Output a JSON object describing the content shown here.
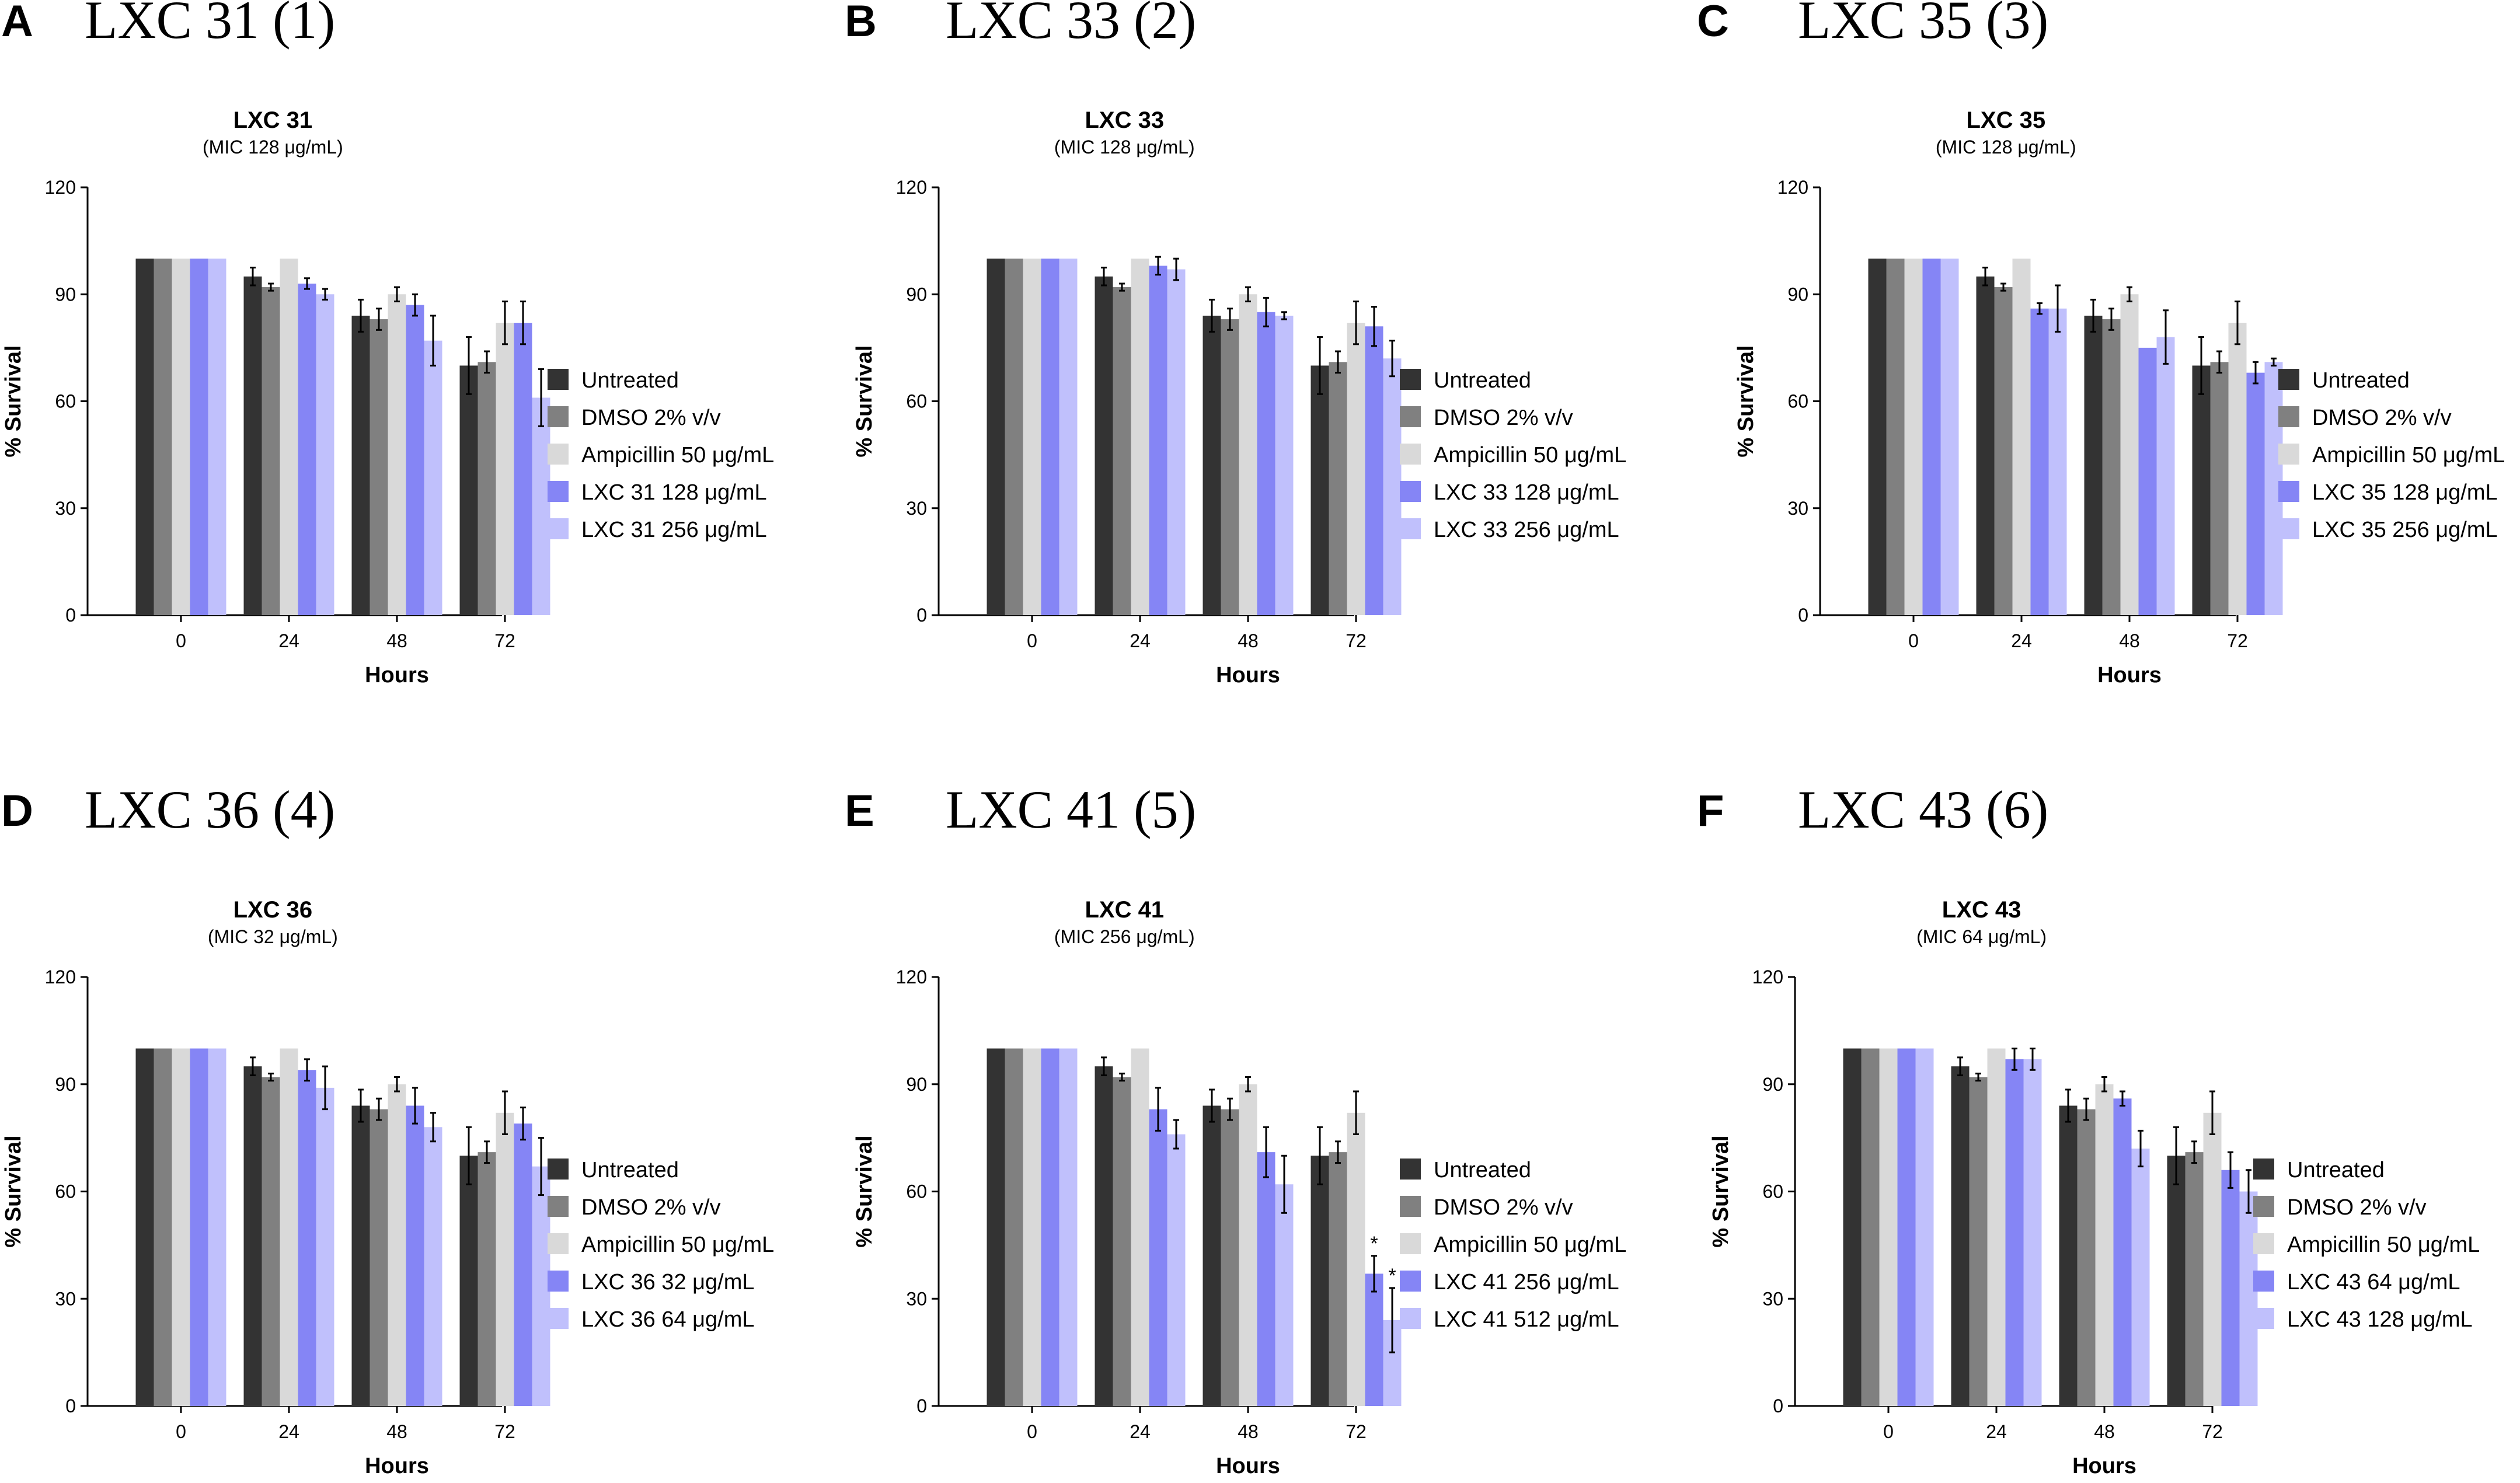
{
  "colors": {
    "Untreated": "#333333",
    "DMSO": "#808080",
    "Ampicillin": "#d9d9d9",
    "low": "#8585f5",
    "high": "#c0c0fc"
  },
  "chart_data": [
    {
      "type": "bar",
      "panel_letter": "A",
      "heading": "LXC 31 (1)",
      "title": "LXC 31",
      "subtitle": "(MIC 128 μg/mL)",
      "xlabel": "Hours",
      "ylabel": "% Survival",
      "ylim": [
        0,
        120
      ],
      "yticks": [
        "0",
        "30",
        "60",
        "90",
        "120"
      ],
      "categories": [
        "0",
        "24",
        "48",
        "72"
      ],
      "legend_position": "right",
      "series": [
        {
          "name": "Untreated",
          "color_key": "Untreated",
          "values": [
            100,
            95,
            84,
            70
          ],
          "errors": [
            0,
            2.5,
            4.5,
            8
          ]
        },
        {
          "name": "DMSO 2% v/v",
          "color_key": "DMSO",
          "values": [
            100,
            92,
            83,
            71
          ],
          "errors": [
            0,
            1,
            3,
            3
          ]
        },
        {
          "name": "Ampicillin 50 μg/mL",
          "color_key": "Ampicillin",
          "values": [
            100,
            100,
            90,
            82
          ],
          "errors": [
            0,
            0,
            2,
            6
          ]
        },
        {
          "name": "LXC 31 128 μg/mL",
          "color_key": "low",
          "values": [
            100,
            93,
            87,
            82
          ],
          "errors": [
            0,
            1.5,
            3,
            6
          ]
        },
        {
          "name": "LXC 31 256 μg/mL",
          "color_key": "high",
          "values": [
            100,
            90,
            77,
            61
          ],
          "errors": [
            0,
            1.5,
            7,
            8
          ]
        }
      ],
      "annotations": []
    },
    {
      "type": "bar",
      "panel_letter": "B",
      "heading": "LXC 33 (2)",
      "title": "LXC 33",
      "subtitle": "(MIC 128 μg/mL)",
      "xlabel": "Hours",
      "ylabel": "% Survival",
      "ylim": [
        0,
        120
      ],
      "yticks": [
        "0",
        "30",
        "60",
        "90",
        "120"
      ],
      "categories": [
        "0",
        "24",
        "48",
        "72"
      ],
      "legend_position": "right",
      "series": [
        {
          "name": "Untreated",
          "color_key": "Untreated",
          "values": [
            100,
            95,
            84,
            70
          ],
          "errors": [
            0,
            2.5,
            4.5,
            8
          ]
        },
        {
          "name": "DMSO 2% v/v",
          "color_key": "DMSO",
          "values": [
            100,
            92,
            83,
            71
          ],
          "errors": [
            0,
            1,
            3,
            3
          ]
        },
        {
          "name": "Ampicillin 50 μg/mL",
          "color_key": "Ampicillin",
          "values": [
            100,
            100,
            90,
            82
          ],
          "errors": [
            0,
            0,
            2,
            6
          ]
        },
        {
          "name": "LXC 33 128 μg/mL",
          "color_key": "low",
          "values": [
            100,
            98,
            85,
            81
          ],
          "errors": [
            0,
            2.5,
            4,
            5.5
          ]
        },
        {
          "name": "LXC 33 256 μg/mL",
          "color_key": "high",
          "values": [
            100,
            97,
            84,
            72
          ],
          "errors": [
            0,
            3,
            1,
            5
          ]
        }
      ],
      "annotations": []
    },
    {
      "type": "bar",
      "panel_letter": "C",
      "heading": "LXC 35 (3)",
      "title": "LXC 35",
      "subtitle": "(MIC 128 μg/mL)",
      "xlabel": "Hours",
      "ylabel": "% Survival",
      "ylim": [
        0,
        120
      ],
      "yticks": [
        "0",
        "30",
        "60",
        "90",
        "120"
      ],
      "categories": [
        "0",
        "24",
        "48",
        "72"
      ],
      "legend_position": "right",
      "series": [
        {
          "name": "Untreated",
          "color_key": "Untreated",
          "values": [
            100,
            95,
            84,
            70
          ],
          "errors": [
            0,
            2.5,
            4.5,
            8
          ]
        },
        {
          "name": "DMSO 2% v/v",
          "color_key": "DMSO",
          "values": [
            100,
            92,
            83,
            71
          ],
          "errors": [
            0,
            1,
            3,
            3
          ]
        },
        {
          "name": "Ampicillin 50 μg/mL",
          "color_key": "Ampicillin",
          "values": [
            100,
            100,
            90,
            82
          ],
          "errors": [
            0,
            0,
            2,
            6
          ]
        },
        {
          "name": "LXC 35 128 μg/mL",
          "color_key": "low",
          "values": [
            100,
            86,
            75,
            68
          ],
          "errors": [
            0,
            1.5,
            0,
            3
          ]
        },
        {
          "name": "LXC 35 256 μg/mL",
          "color_key": "high",
          "values": [
            100,
            86,
            78,
            71
          ],
          "errors": [
            0,
            6.5,
            7.5,
            1
          ]
        }
      ],
      "annotations": []
    },
    {
      "type": "bar",
      "panel_letter": "D",
      "heading": "LXC 36 (4)",
      "title": "LXC 36",
      "subtitle": "(MIC 32 μg/mL)",
      "xlabel": "Hours",
      "ylabel": "% Survival",
      "ylim": [
        0,
        120
      ],
      "yticks": [
        "0",
        "30",
        "60",
        "90",
        "120"
      ],
      "categories": [
        "0",
        "24",
        "48",
        "72"
      ],
      "legend_position": "right",
      "series": [
        {
          "name": "Untreated",
          "color_key": "Untreated",
          "values": [
            100,
            95,
            84,
            70
          ],
          "errors": [
            0,
            2.5,
            4.5,
            8
          ]
        },
        {
          "name": "DMSO 2% v/v",
          "color_key": "DMSO",
          "values": [
            100,
            92,
            83,
            71
          ],
          "errors": [
            0,
            1,
            3,
            3
          ]
        },
        {
          "name": "Ampicillin 50 μg/mL",
          "color_key": "Ampicillin",
          "values": [
            100,
            100,
            90,
            82
          ],
          "errors": [
            0,
            0,
            2,
            6
          ]
        },
        {
          "name": "LXC 36 32 μg/mL",
          "color_key": "low",
          "values": [
            100,
            94,
            84,
            79
          ],
          "errors": [
            0,
            3,
            5,
            4.5
          ]
        },
        {
          "name": "LXC 36 64 μg/mL",
          "color_key": "high",
          "values": [
            100,
            89,
            78,
            67
          ],
          "errors": [
            0,
            6,
            4,
            8
          ]
        }
      ],
      "annotations": []
    },
    {
      "type": "bar",
      "panel_letter": "E",
      "heading": "LXC 41 (5)",
      "title": "LXC 41",
      "subtitle": "(MIC 256 μg/mL)",
      "xlabel": "Hours",
      "ylabel": "% Survival",
      "ylim": [
        0,
        120
      ],
      "yticks": [
        "0",
        "30",
        "60",
        "90",
        "120"
      ],
      "categories": [
        "0",
        "24",
        "48",
        "72"
      ],
      "legend_position": "right",
      "series": [
        {
          "name": "Untreated",
          "color_key": "Untreated",
          "values": [
            100,
            95,
            84,
            70
          ],
          "errors": [
            0,
            2.5,
            4.5,
            8
          ]
        },
        {
          "name": "DMSO 2% v/v",
          "color_key": "DMSO",
          "values": [
            100,
            92,
            83,
            71
          ],
          "errors": [
            0,
            1,
            3,
            3
          ]
        },
        {
          "name": "Ampicillin 50 μg/mL",
          "color_key": "Ampicillin",
          "values": [
            100,
            100,
            90,
            82
          ],
          "errors": [
            0,
            0,
            2,
            6
          ]
        },
        {
          "name": "LXC 41 256 μg/mL",
          "color_key": "low",
          "values": [
            100,
            83,
            71,
            37
          ],
          "errors": [
            0,
            6,
            7,
            5
          ]
        },
        {
          "name": "LXC 41 512 μg/mL",
          "color_key": "high",
          "values": [
            100,
            76,
            62,
            24
          ],
          "errors": [
            0,
            4,
            8,
            9
          ]
        }
      ],
      "annotations": [
        {
          "text": "*",
          "series_index": 3,
          "category_index": 3
        },
        {
          "text": "*",
          "series_index": 4,
          "category_index": 3
        }
      ]
    },
    {
      "type": "bar",
      "panel_letter": "F",
      "heading": "LXC 43 (6)",
      "title": "LXC 43",
      "subtitle": "(MIC 64 μg/mL)",
      "xlabel": "Hours",
      "ylabel": "% Survival",
      "ylim": [
        0,
        120
      ],
      "yticks": [
        "0",
        "30",
        "60",
        "90",
        "120"
      ],
      "categories": [
        "0",
        "24",
        "48",
        "72"
      ],
      "legend_position": "right",
      "series": [
        {
          "name": "Untreated",
          "color_key": "Untreated",
          "values": [
            100,
            95,
            84,
            70
          ],
          "errors": [
            0,
            2.5,
            4.5,
            8
          ]
        },
        {
          "name": "DMSO 2% v/v",
          "color_key": "DMSO",
          "values": [
            100,
            92,
            83,
            71
          ],
          "errors": [
            0,
            1,
            3,
            3
          ]
        },
        {
          "name": "Ampicillin 50 μg/mL",
          "color_key": "Ampicillin",
          "values": [
            100,
            100,
            90,
            82
          ],
          "errors": [
            0,
            0,
            2,
            6
          ]
        },
        {
          "name": "LXC 43 64 μg/mL",
          "color_key": "low",
          "values": [
            100,
            97,
            86,
            66
          ],
          "errors": [
            0,
            3,
            2,
            5
          ]
        },
        {
          "name": "LXC 43 128 μg/mL",
          "color_key": "high",
          "values": [
            100,
            97,
            72,
            60
          ],
          "errors": [
            0,
            3,
            5,
            6
          ]
        }
      ],
      "annotations": []
    }
  ]
}
